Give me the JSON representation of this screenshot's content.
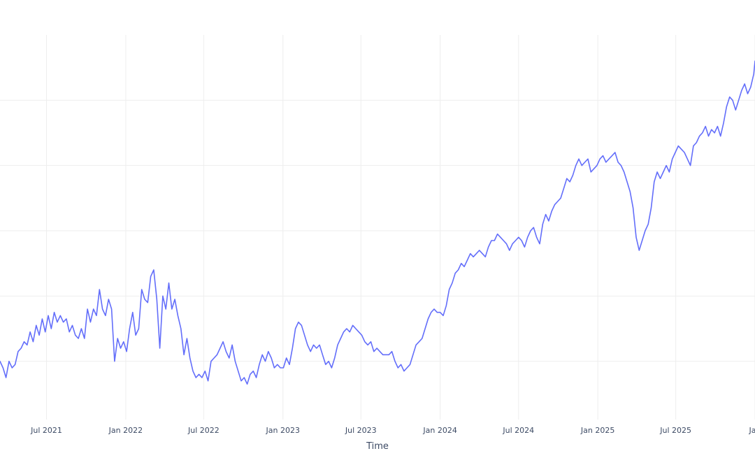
{
  "chart_data": {
    "type": "line",
    "title": "",
    "xlabel": "Time",
    "ylabel": "",
    "x_range": [
      "2021-03-15",
      "2026-01-01"
    ],
    "ylim": [
      0,
      100
    ],
    "grid": true,
    "legend": "none",
    "x_ticks": [
      {
        "date": "2021-07-01",
        "label": "Jul 2021"
      },
      {
        "date": "2022-01-01",
        "label": "Jan 2022"
      },
      {
        "date": "2022-07-01",
        "label": "Jul 2022"
      },
      {
        "date": "2023-01-01",
        "label": "Jan 2023"
      },
      {
        "date": "2023-07-01",
        "label": "Jul 2023"
      },
      {
        "date": "2024-01-01",
        "label": "Jan 2024"
      },
      {
        "date": "2024-07-01",
        "label": "Jul 2024"
      },
      {
        "date": "2025-01-01",
        "label": "Jan 2025"
      },
      {
        "date": "2025-07-01",
        "label": "Jul 2025"
      },
      {
        "date": "2026-01-01",
        "label": "Jan"
      }
    ],
    "y_gridlines": [
      80,
      60,
      40,
      20,
      0
    ],
    "series": [
      {
        "color": "#636efa",
        "points": [
          [
            "2021-03-15",
            0
          ],
          [
            "2021-03-22",
            -2
          ],
          [
            "2021-03-29",
            -5
          ],
          [
            "2021-04-05",
            0
          ],
          [
            "2021-04-12",
            -2
          ],
          [
            "2021-04-19",
            -1
          ],
          [
            "2021-04-26",
            3
          ],
          [
            "2021-05-03",
            4
          ],
          [
            "2021-05-10",
            6
          ],
          [
            "2021-05-17",
            5
          ],
          [
            "2021-05-24",
            9
          ],
          [
            "2021-05-31",
            6
          ],
          [
            "2021-06-07",
            11
          ],
          [
            "2021-06-14",
            8
          ],
          [
            "2021-06-21",
            13
          ],
          [
            "2021-06-28",
            9
          ],
          [
            "2021-07-05",
            14
          ],
          [
            "2021-07-12",
            10
          ],
          [
            "2021-07-19",
            15
          ],
          [
            "2021-07-26",
            12
          ],
          [
            "2021-08-02",
            14
          ],
          [
            "2021-08-09",
            12
          ],
          [
            "2021-08-16",
            13
          ],
          [
            "2021-08-23",
            9
          ],
          [
            "2021-08-30",
            11
          ],
          [
            "2021-09-06",
            8
          ],
          [
            "2021-09-13",
            7
          ],
          [
            "2021-09-20",
            10
          ],
          [
            "2021-09-27",
            7
          ],
          [
            "2021-10-04",
            16
          ],
          [
            "2021-10-11",
            12
          ],
          [
            "2021-10-18",
            16
          ],
          [
            "2021-10-25",
            14
          ],
          [
            "2021-11-01",
            22
          ],
          [
            "2021-11-08",
            16
          ],
          [
            "2021-11-15",
            14
          ],
          [
            "2021-11-22",
            19
          ],
          [
            "2021-11-29",
            16
          ],
          [
            "2021-12-06",
            0
          ],
          [
            "2021-12-13",
            7
          ],
          [
            "2021-12-20",
            4
          ],
          [
            "2021-12-27",
            6
          ],
          [
            "2022-01-03",
            3
          ],
          [
            "2022-01-10",
            10
          ],
          [
            "2022-01-17",
            15
          ],
          [
            "2022-01-24",
            8
          ],
          [
            "2022-01-31",
            10
          ],
          [
            "2022-02-07",
            22
          ],
          [
            "2022-02-14",
            19
          ],
          [
            "2022-02-21",
            18
          ],
          [
            "2022-02-28",
            26
          ],
          [
            "2022-03-07",
            28
          ],
          [
            "2022-03-14",
            19
          ],
          [
            "2022-03-21",
            4
          ],
          [
            "2022-03-28",
            20
          ],
          [
            "2022-04-04",
            16
          ],
          [
            "2022-04-11",
            24
          ],
          [
            "2022-04-18",
            16
          ],
          [
            "2022-04-25",
            19
          ],
          [
            "2022-05-02",
            14
          ],
          [
            "2022-05-09",
            10
          ],
          [
            "2022-05-16",
            2
          ],
          [
            "2022-05-23",
            7
          ],
          [
            "2022-05-30",
            1
          ],
          [
            "2022-06-06",
            -3
          ],
          [
            "2022-06-13",
            -5
          ],
          [
            "2022-06-20",
            -4
          ],
          [
            "2022-06-27",
            -5
          ],
          [
            "2022-07-04",
            -3
          ],
          [
            "2022-07-11",
            -6
          ],
          [
            "2022-07-18",
            0
          ],
          [
            "2022-07-25",
            1
          ],
          [
            "2022-08-01",
            2
          ],
          [
            "2022-08-08",
            4
          ],
          [
            "2022-08-15",
            6
          ],
          [
            "2022-08-22",
            3
          ],
          [
            "2022-08-29",
            1
          ],
          [
            "2022-09-05",
            5
          ],
          [
            "2022-09-12",
            0
          ],
          [
            "2022-09-19",
            -3
          ],
          [
            "2022-09-26",
            -6
          ],
          [
            "2022-10-03",
            -5
          ],
          [
            "2022-10-10",
            -7
          ],
          [
            "2022-10-17",
            -4
          ],
          [
            "2022-10-24",
            -3
          ],
          [
            "2022-10-31",
            -5
          ],
          [
            "2022-11-07",
            -1
          ],
          [
            "2022-11-14",
            2
          ],
          [
            "2022-11-21",
            0
          ],
          [
            "2022-11-28",
            3
          ],
          [
            "2022-12-05",
            1
          ],
          [
            "2022-12-12",
            -2
          ],
          [
            "2022-12-19",
            -1
          ],
          [
            "2022-12-26",
            -2
          ],
          [
            "2023-01-02",
            -2
          ],
          [
            "2023-01-09",
            1
          ],
          [
            "2023-01-16",
            -1
          ],
          [
            "2023-01-23",
            4
          ],
          [
            "2023-01-30",
            10
          ],
          [
            "2023-02-06",
            12
          ],
          [
            "2023-02-13",
            11
          ],
          [
            "2023-02-20",
            8
          ],
          [
            "2023-02-27",
            5
          ],
          [
            "2023-03-06",
            3
          ],
          [
            "2023-03-13",
            5
          ],
          [
            "2023-03-20",
            4
          ],
          [
            "2023-03-27",
            5
          ],
          [
            "2023-04-03",
            2
          ],
          [
            "2023-04-10",
            -1
          ],
          [
            "2023-04-17",
            0
          ],
          [
            "2023-04-24",
            -2
          ],
          [
            "2023-05-01",
            1
          ],
          [
            "2023-05-08",
            5
          ],
          [
            "2023-05-15",
            7
          ],
          [
            "2023-05-22",
            9
          ],
          [
            "2023-05-29",
            10
          ],
          [
            "2023-06-05",
            9
          ],
          [
            "2023-06-12",
            11
          ],
          [
            "2023-06-19",
            10
          ],
          [
            "2023-06-26",
            9
          ],
          [
            "2023-07-03",
            8
          ],
          [
            "2023-07-10",
            6
          ],
          [
            "2023-07-17",
            5
          ],
          [
            "2023-07-24",
            6
          ],
          [
            "2023-07-31",
            3
          ],
          [
            "2023-08-07",
            4
          ],
          [
            "2023-08-14",
            3
          ],
          [
            "2023-08-21",
            2
          ],
          [
            "2023-08-28",
            2
          ],
          [
            "2023-09-04",
            2
          ],
          [
            "2023-09-11",
            3
          ],
          [
            "2023-09-18",
            0
          ],
          [
            "2023-09-25",
            -2
          ],
          [
            "2023-10-02",
            -1
          ],
          [
            "2023-10-09",
            -3
          ],
          [
            "2023-10-16",
            -2
          ],
          [
            "2023-10-23",
            -1
          ],
          [
            "2023-10-30",
            2
          ],
          [
            "2023-11-06",
            5
          ],
          [
            "2023-11-13",
            6
          ],
          [
            "2023-11-20",
            7
          ],
          [
            "2023-11-27",
            10
          ],
          [
            "2023-12-04",
            13
          ],
          [
            "2023-12-11",
            15
          ],
          [
            "2023-12-18",
            16
          ],
          [
            "2023-12-25",
            15
          ],
          [
            "2024-01-01",
            15
          ],
          [
            "2024-01-08",
            14
          ],
          [
            "2024-01-15",
            17
          ],
          [
            "2024-01-22",
            22
          ],
          [
            "2024-01-29",
            24
          ],
          [
            "2024-02-05",
            27
          ],
          [
            "2024-02-12",
            28
          ],
          [
            "2024-02-19",
            30
          ],
          [
            "2024-02-26",
            29
          ],
          [
            "2024-03-04",
            31
          ],
          [
            "2024-03-11",
            33
          ],
          [
            "2024-03-18",
            32
          ],
          [
            "2024-03-25",
            33
          ],
          [
            "2024-04-01",
            34
          ],
          [
            "2024-04-08",
            33
          ],
          [
            "2024-04-15",
            32
          ],
          [
            "2024-04-22",
            35
          ],
          [
            "2024-04-29",
            37
          ],
          [
            "2024-05-06",
            37
          ],
          [
            "2024-05-13",
            39
          ],
          [
            "2024-05-20",
            38
          ],
          [
            "2024-05-27",
            37
          ],
          [
            "2024-06-03",
            36
          ],
          [
            "2024-06-10",
            34
          ],
          [
            "2024-06-17",
            36
          ],
          [
            "2024-06-24",
            37
          ],
          [
            "2024-07-01",
            38
          ],
          [
            "2024-07-08",
            37
          ],
          [
            "2024-07-15",
            35
          ],
          [
            "2024-07-22",
            38
          ],
          [
            "2024-07-29",
            40
          ],
          [
            "2024-08-05",
            41
          ],
          [
            "2024-08-12",
            38
          ],
          [
            "2024-08-19",
            36
          ],
          [
            "2024-08-26",
            42
          ],
          [
            "2024-09-02",
            45
          ],
          [
            "2024-09-09",
            43
          ],
          [
            "2024-09-16",
            46
          ],
          [
            "2024-09-23",
            48
          ],
          [
            "2024-09-30",
            49
          ],
          [
            "2024-10-07",
            50
          ],
          [
            "2024-10-14",
            53
          ],
          [
            "2024-10-21",
            56
          ],
          [
            "2024-10-28",
            55
          ],
          [
            "2024-11-04",
            57
          ],
          [
            "2024-11-11",
            60
          ],
          [
            "2024-11-18",
            62
          ],
          [
            "2024-11-25",
            60
          ],
          [
            "2024-12-02",
            61
          ],
          [
            "2024-12-09",
            62
          ],
          [
            "2024-12-16",
            58
          ],
          [
            "2024-12-23",
            59
          ],
          [
            "2024-12-30",
            60
          ],
          [
            "2025-01-06",
            62
          ],
          [
            "2025-01-13",
            63
          ],
          [
            "2025-01-20",
            61
          ],
          [
            "2025-01-27",
            62
          ],
          [
            "2025-02-03",
            63
          ],
          [
            "2025-02-10",
            64
          ],
          [
            "2025-02-17",
            61
          ],
          [
            "2025-02-24",
            60
          ],
          [
            "2025-03-03",
            58
          ],
          [
            "2025-03-10",
            55
          ],
          [
            "2025-03-17",
            52
          ],
          [
            "2025-03-24",
            47
          ],
          [
            "2025-03-31",
            38
          ],
          [
            "2025-04-07",
            34
          ],
          [
            "2025-04-14",
            37
          ],
          [
            "2025-04-21",
            40
          ],
          [
            "2025-04-28",
            42
          ],
          [
            "2025-05-05",
            47
          ],
          [
            "2025-05-12",
            55
          ],
          [
            "2025-05-19",
            58
          ],
          [
            "2025-05-26",
            56
          ],
          [
            "2025-06-02",
            58
          ],
          [
            "2025-06-09",
            60
          ],
          [
            "2025-06-16",
            58
          ],
          [
            "2025-06-23",
            62
          ],
          [
            "2025-06-30",
            64
          ],
          [
            "2025-07-07",
            66
          ],
          [
            "2025-07-14",
            65
          ],
          [
            "2025-07-21",
            64
          ],
          [
            "2025-07-28",
            62
          ],
          [
            "2025-08-04",
            60
          ],
          [
            "2025-08-11",
            66
          ],
          [
            "2025-08-18",
            67
          ],
          [
            "2025-08-25",
            69
          ],
          [
            "2025-09-01",
            70
          ],
          [
            "2025-09-08",
            72
          ],
          [
            "2025-09-15",
            69
          ],
          [
            "2025-09-22",
            71
          ],
          [
            "2025-09-29",
            70
          ],
          [
            "2025-10-06",
            72
          ],
          [
            "2025-10-13",
            69
          ],
          [
            "2025-10-20",
            73
          ],
          [
            "2025-10-27",
            78
          ],
          [
            "2025-11-03",
            81
          ],
          [
            "2025-11-10",
            80
          ],
          [
            "2025-11-17",
            77
          ],
          [
            "2025-11-24",
            80
          ],
          [
            "2025-12-01",
            83
          ],
          [
            "2025-12-08",
            85
          ],
          [
            "2025-12-15",
            82
          ],
          [
            "2025-12-22",
            84
          ],
          [
            "2025-12-29",
            88
          ],
          [
            "2026-01-01",
            92
          ]
        ]
      }
    ]
  }
}
